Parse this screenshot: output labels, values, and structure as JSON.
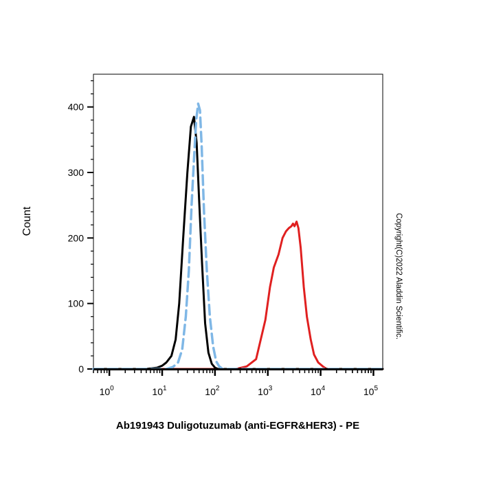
{
  "chart_data": {
    "type": "line",
    "title": "",
    "xlabel": "Ab191943 Duligotuzumab (anti-EGFR&HER3) - PE",
    "ylabel": "Count",
    "x_scale": "log",
    "xlim": [
      0.5,
      150000
    ],
    "ylim": [
      0,
      450
    ],
    "x_ticks": [
      {
        "base": "10",
        "exp": "0",
        "value": 1
      },
      {
        "base": "10",
        "exp": "1",
        "value": 10
      },
      {
        "base": "10",
        "exp": "2",
        "value": 100
      },
      {
        "base": "10",
        "exp": "3",
        "value": 1000
      },
      {
        "base": "10",
        "exp": "4",
        "value": 10000
      },
      {
        "base": "10",
        "exp": "5",
        "value": 100000
      }
    ],
    "y_ticks": [
      {
        "label": "0",
        "value": 0
      },
      {
        "label": "100",
        "value": 100
      },
      {
        "label": "200",
        "value": 200
      },
      {
        "label": "300",
        "value": 300
      },
      {
        "label": "400",
        "value": 400
      }
    ],
    "grid": false,
    "legend": "none",
    "series": [
      {
        "color": "#e02020",
        "style": "solid",
        "x": [
          0.5,
          80,
          150,
          250,
          400,
          600,
          900,
          1100,
          1300,
          1600,
          1900,
          2200,
          2500,
          2800,
          3000,
          3200,
          3500,
          3800,
          4200,
          4800,
          5500,
          6500,
          7500,
          9000,
          11000,
          13000,
          20000,
          150000
        ],
        "y": [
          0,
          0,
          0,
          0,
          4,
          15,
          75,
          125,
          155,
          175,
          200,
          210,
          215,
          218,
          222,
          218,
          225,
          215,
          185,
          125,
          80,
          45,
          22,
          10,
          4,
          0,
          0,
          0
        ]
      },
      {
        "color": "#000000",
        "style": "solid",
        "x": [
          0.5,
          5,
          8,
          10,
          12,
          15,
          18,
          21,
          25,
          30,
          35,
          40,
          45,
          50,
          57,
          65,
          75,
          87,
          100,
          115,
          150000
        ],
        "y": [
          0,
          0,
          2,
          5,
          10,
          20,
          45,
          100,
          200,
          300,
          370,
          385,
          345,
          260,
          160,
          70,
          25,
          8,
          2,
          0,
          0
        ]
      },
      {
        "color": "#7fb7e6",
        "style": "dashed",
        "x": [
          0.5,
          12,
          16,
          20,
          24,
          28,
          32,
          36,
          40,
          44,
          48,
          52,
          56,
          62,
          70,
          80,
          92,
          105,
          120,
          140,
          150000
        ],
        "y": [
          0,
          0,
          3,
          10,
          30,
          80,
          150,
          250,
          320,
          380,
          405,
          395,
          340,
          240,
          150,
          80,
          35,
          12,
          4,
          0,
          0
        ]
      }
    ]
  },
  "copyright": "Copyright(C)2022 Aladdin Scientific."
}
